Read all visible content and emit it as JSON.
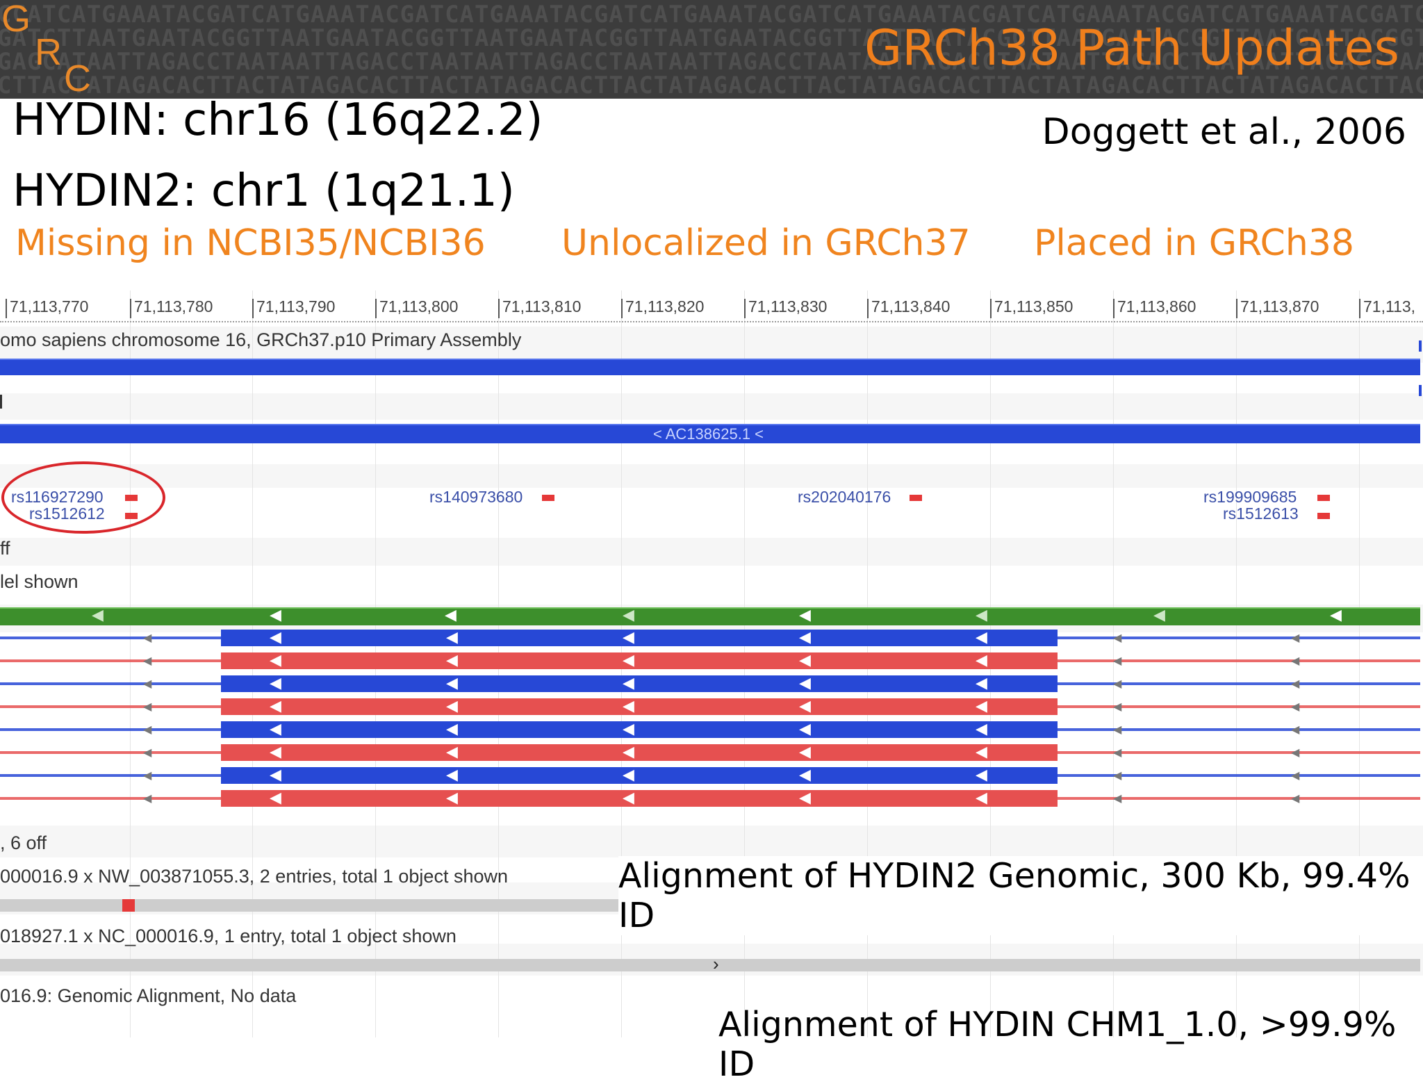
{
  "banner": {
    "logo_letters": [
      "G",
      "R",
      "C"
    ],
    "dna_rows": [
      "CCATCATGAAATACGATCATGAAATACGATCATGAAATACGATCATGAAATACGATCATGAAATACGATCATGAAATACGATCATGAAATACGATCATGAAATACGATCATGAAATACG",
      "GATCTTAATGAATACGGTTAATGAATACGGTTAATGAATACGGTTAATGAATACGGTTAATGAATACGGTTAATGAATACGGTTAATGAATACGGTTAATGAATACGGTTAATGAATAC",
      "GAGCATAATTAGACCTAATAATTAGACCTAATAATTAGACCTAATAATTAGACCTAATAATTAGACCTAATAATTAGACCTAATAATTAGACCTAATAATTAGACCTAATAATTAGACC",
      "CTTACTATAGACACTTACTATAGACACTTACTATAGACACTTACTATAGACACTTACTATAGACACTTACTATAGACACTTACTATAGACACTTACTATAGACACTTACTATAGACAC"
    ],
    "title": "GRCh38 Path Updates"
  },
  "header": {
    "line1": "HYDIN: chr16 (16q22.2)",
    "line2": "HYDIN2: chr1 (1q21.1)",
    "citation": "Doggett et al., 2006"
  },
  "status_labels": {
    "missing": "Missing in NCBI35/NCBI36",
    "unlocalized": "Unlocalized in GRCh37",
    "placed": "Placed in GRCh38"
  },
  "viewer": {
    "ruler_ticks": [
      "71,113,770",
      "71,113,780",
      "71,113,790",
      "71,113,800",
      "71,113,810",
      "71,113,820",
      "71,113,830",
      "71,113,840",
      "71,113,850",
      "71,113,860",
      "71,113,870",
      "71,113,"
    ],
    "track_title": "omo sapiens chromosome 16, GRCh37.p10 Primary Assembly",
    "clone_label": "< AC138625.1 <",
    "snps": [
      {
        "id": "rs116927290"
      },
      {
        "id": "rs1512612"
      },
      {
        "id": "rs140973680"
      },
      {
        "id": "rs202040176"
      },
      {
        "id": "rs199909685"
      },
      {
        "id": "rs1512613"
      }
    ],
    "off_label": "ff",
    "model_label": "lel shown",
    "six_off_label": ", 6 off",
    "align1_label": "000016.9 x NW_003871055.3, 2 entries, total 1 object shown",
    "align2_label": "018927.1 x NC_000016.9, 1 entry, total 1 object shown",
    "nodata_label": "016.9: Genomic Alignment, No data",
    "chevron_left": "‹",
    "chevron_right": "›"
  },
  "captions": {
    "hydin2": "Alignment of HYDIN2 Genomic, 300 Kb, 99.4% ID",
    "chm1": "Alignment of HYDIN CHM1_1.0, >99.9% ID"
  },
  "colors": {
    "banner_bg": "#3c3c3c",
    "accent_orange": "#f0841e",
    "track_blue": "#2748d6",
    "track_red": "#e65050",
    "gene_green": "#3d8f2c",
    "highlight_circle": "#d9262b"
  }
}
